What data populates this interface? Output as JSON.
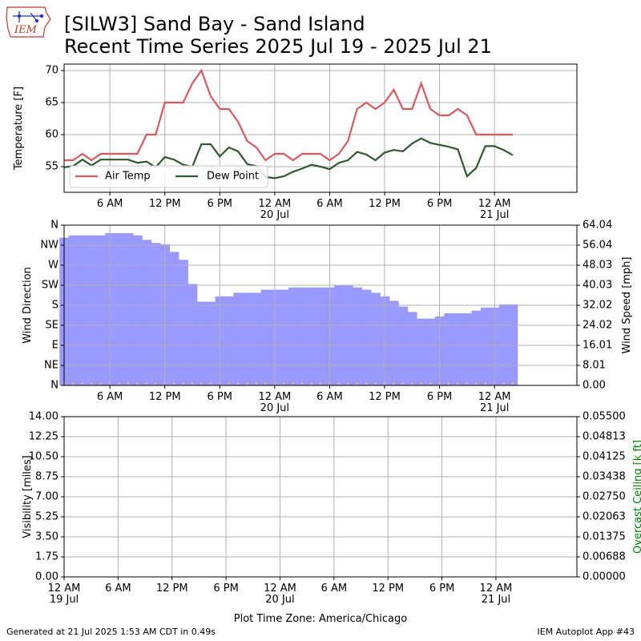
{
  "header": {
    "logo_text": "IEM",
    "title_line1": "[SILW3] Sand Bay - Sand Island",
    "title_line2": "Recent Time Series 2025 Jul 19 - 2025 Jul 21"
  },
  "footer": {
    "generated": "Generated at 21 Jul 2025 1:53 AM CDT in 0.49s",
    "app": "IEM Autoplot App #43"
  },
  "colors": {
    "air_temp": "#d9595f",
    "dew_point": "#2e5a2e",
    "wind_fill": "#9999ff",
    "wind_dot": "#e3c16b",
    "grid": "#b0b0b0",
    "ceiling_label": "#008000"
  },
  "chart_data": [
    {
      "type": "line",
      "ylabel": "Temperature [F]",
      "x_unit": "hours since 12 AM 19 Jul (America/Chicago)",
      "xlim": [
        1,
        57
      ],
      "ylim": [
        51,
        71
      ],
      "yticks": [
        55,
        60,
        65,
        70
      ],
      "xticks": [
        6,
        12,
        18,
        24,
        30,
        36,
        42,
        48
      ],
      "xtick_labels": [
        "6 AM",
        "12 PM",
        "6 PM",
        "12 AM\n20 Jul",
        "6 AM",
        "12 PM",
        "6 PM",
        "12 AM\n21 Jul"
      ],
      "legend": "lower-left",
      "grid": true,
      "series": [
        {
          "name": "Air Temp",
          "x": [
            1,
            2,
            3,
            4,
            5,
            6,
            7,
            8,
            9,
            10,
            11,
            12,
            13,
            14,
            15,
            16,
            17,
            18,
            19,
            20,
            21,
            22,
            23,
            24,
            25,
            26,
            27,
            28,
            29,
            30,
            31,
            32,
            33,
            34,
            35,
            36,
            37,
            38,
            39,
            40,
            41,
            42,
            43,
            44,
            45,
            46,
            47,
            48,
            49,
            50
          ],
          "values": [
            56,
            56,
            57,
            56,
            57,
            57,
            57,
            57,
            57,
            60,
            60,
            65,
            65,
            65,
            68,
            70,
            66,
            64,
            64,
            62,
            59,
            58,
            56,
            57,
            57,
            56,
            57,
            57,
            57,
            56,
            57,
            59,
            64,
            65,
            64,
            65,
            67,
            64,
            64,
            68,
            64,
            63,
            63,
            64,
            63,
            60,
            60,
            60,
            60,
            60
          ]
        },
        {
          "name": "Dew Point",
          "x": [
            1,
            2,
            3,
            4,
            5,
            6,
            7,
            8,
            9,
            10,
            11,
            12,
            13,
            14,
            15,
            16,
            17,
            18,
            19,
            20,
            21,
            22,
            23,
            24,
            25,
            26,
            27,
            28,
            29,
            30,
            31,
            32,
            33,
            34,
            35,
            36,
            37,
            38,
            39,
            40,
            41,
            42,
            43,
            44,
            45,
            46,
            47,
            48,
            49,
            50
          ],
          "values": [
            54.9,
            55.1,
            56.1,
            55.2,
            56.1,
            56.1,
            56.1,
            56.1,
            55.6,
            55.8,
            54.9,
            56.5,
            56.1,
            55.3,
            55.0,
            58.5,
            58.5,
            56.6,
            58.0,
            57.4,
            55.4,
            55.1,
            53.4,
            53.2,
            53.5,
            54.2,
            54.7,
            55.3,
            55.0,
            54.6,
            55.6,
            56.0,
            57.3,
            56.9,
            56.0,
            57.2,
            57.6,
            57.4,
            58.6,
            59.4,
            58.7,
            58.4,
            58.1,
            57.7,
            53.5,
            54.8,
            58.2,
            58.2,
            57.6,
            56.8
          ]
        }
      ]
    },
    {
      "type": "bar",
      "ylabel": "Wind Direction",
      "y2label": "Wind Speed [mph]",
      "x_unit": "hours since 12 AM 19 Jul (America/Chicago)",
      "xlim": [
        1,
        57
      ],
      "ylim": [
        0,
        360
      ],
      "yticks": [
        0,
        45,
        90,
        135,
        180,
        225,
        270,
        315,
        360
      ],
      "ytick_labels": [
        "N",
        "NE",
        "E",
        "SE",
        "S",
        "SW",
        "W",
        "NW",
        "N"
      ],
      "y2lim": [
        0,
        64.04
      ],
      "y2ticks": [
        0.0,
        8.01,
        16.01,
        24.02,
        32.02,
        40.03,
        48.03,
        56.04,
        64.04
      ],
      "y2tick_labels": [
        "0.00",
        "8.01",
        "16.01",
        "24.02",
        "32.02",
        "40.03",
        "48.03",
        "56.04",
        "64.04"
      ],
      "xticks": [
        6,
        12,
        18,
        24,
        30,
        36,
        42,
        48
      ],
      "xtick_labels": [
        "6 AM",
        "12 PM",
        "6 PM",
        "12 AM\n20 Jul",
        "6 AM",
        "12 PM",
        "6 PM",
        "12 AM\n21 Jul"
      ],
      "grid": true,
      "series": [
        {
          "name": "Wind Direction",
          "x": [
            1,
            2,
            3,
            4,
            5,
            6,
            7,
            8,
            9,
            10,
            11,
            12,
            13,
            14,
            15,
            16,
            17,
            18,
            19,
            20,
            21,
            22,
            23,
            24,
            25,
            26,
            27,
            28,
            29,
            30,
            31,
            32,
            33,
            34,
            35,
            36,
            37,
            38,
            39,
            40,
            41,
            42,
            43,
            44,
            45,
            46,
            47,
            48,
            49,
            50
          ],
          "values": [
            332,
            337,
            337,
            337,
            337,
            342,
            342,
            342,
            337,
            327,
            320,
            317,
            300,
            282,
            228,
            188,
            188,
            200,
            200,
            208,
            208,
            208,
            215,
            215,
            215,
            220,
            220,
            220,
            220,
            220,
            225,
            225,
            220,
            215,
            208,
            200,
            190,
            177,
            165,
            150,
            150,
            155,
            162,
            162,
            162,
            168,
            175,
            175,
            182,
            182
          ]
        },
        {
          "name": "Wind Speed",
          "x": [
            1,
            2,
            3,
            4,
            5,
            6,
            7,
            8,
            9,
            10,
            11,
            12,
            13,
            14,
            15,
            16,
            17,
            18,
            19,
            20,
            21,
            22,
            23,
            24,
            25,
            26,
            27,
            28,
            29,
            30,
            31,
            32,
            33,
            34,
            35,
            36,
            37,
            38,
            39,
            40,
            41,
            42,
            43,
            44,
            45,
            46,
            47,
            48,
            49,
            50
          ],
          "values": [
            0.5,
            0.5,
            0.5,
            0.5,
            0.5,
            0.5,
            0.5,
            0.5,
            0.5,
            0.5,
            0.5,
            0.5,
            0.5,
            0.5,
            0.5,
            0.5,
            0.5,
            0.5,
            0.5,
            0.5,
            0.5,
            0.5,
            0.5,
            0.5,
            0.5,
            0.5,
            0.5,
            0.5,
            0.5,
            0.5,
            0.5,
            0.5,
            0.5,
            0.5,
            0.5,
            0.5,
            0.5,
            0.5,
            0.5,
            0.5,
            0.5,
            0.5,
            0.5,
            0.5,
            0.5,
            0.5,
            0.5,
            0.5,
            0.5,
            0.5
          ]
        }
      ]
    },
    {
      "type": "line",
      "ylabel": "Visibility [miles]",
      "y2label": "Overcast Ceiling [k ft]",
      "x_unit": "hours since 12 AM 19 Jul (America/Chicago)",
      "xlim": [
        0,
        57
      ],
      "ylim": [
        0,
        14
      ],
      "yticks": [
        0.0,
        1.75,
        3.5,
        5.25,
        7.0,
        8.75,
        10.5,
        12.25,
        14.0
      ],
      "ytick_labels": [
        "0.00",
        "1.75",
        "3.50",
        "5.25",
        "7.00",
        "8.75",
        "10.50",
        "12.25",
        "14.00"
      ],
      "y2lim": [
        0,
        0.055
      ],
      "y2ticks": [
        0,
        0.006875,
        0.01375,
        0.020625,
        0.0275,
        0.034375,
        0.04125,
        0.048125,
        0.055
      ],
      "y2tick_labels": [
        "0.00000",
        "0.00688",
        "0.01375",
        "0.02063",
        "0.02750",
        "0.03438",
        "0.04125",
        "0.04813",
        "0.05500"
      ],
      "xticks": [
        0,
        6,
        12,
        18,
        24,
        30,
        36,
        42,
        48
      ],
      "xtick_labels": [
        "12 AM\n19 Jul",
        "6 AM",
        "12 PM",
        "6 PM",
        "12 AM\n20 Jul",
        "6 AM",
        "12 PM",
        "6 PM",
        "12 AM\n21 Jul"
      ],
      "xlabel": "Plot Time Zone: America/Chicago",
      "grid": true,
      "series": []
    }
  ]
}
